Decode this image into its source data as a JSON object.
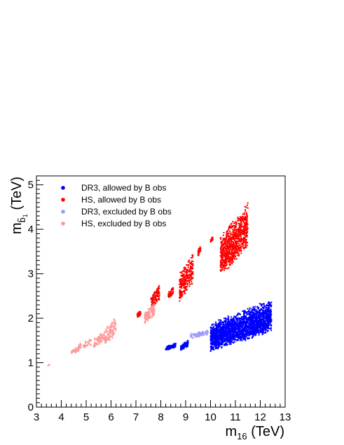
{
  "chart_data": {
    "type": "scatter",
    "xlabel": "m",
    "xlabel_sub": "16",
    "xlabel_unit": " (TeV)",
    "ylabel": "m",
    "ylabel_sub": "b̃",
    "ylabel_subsub": "1",
    "ylabel_unit": " (TeV)",
    "xlim": [
      3,
      13
    ],
    "ylim": [
      0,
      5.2
    ],
    "x_ticks": [
      3,
      4,
      5,
      6,
      7,
      8,
      9,
      10,
      11,
      12,
      13
    ],
    "y_ticks": [
      0,
      1,
      2,
      3,
      4,
      5
    ],
    "grid": false,
    "legend_position": "top-left",
    "series": [
      {
        "name": "DR3, allowed by B obs",
        "color": "#0000ff",
        "clusters": [
          {
            "x": [
              8.2,
              8.6
            ],
            "y": [
              1.28,
              1.45
            ],
            "n": 120
          },
          {
            "x": [
              8.8,
              9.1
            ],
            "y": [
              1.28,
              1.5
            ],
            "n": 90
          },
          {
            "x": [
              10.0,
              12.45
            ],
            "y": [
              1.3,
              2.4
            ],
            "n": 2200
          }
        ]
      },
      {
        "name": "HS, allowed by B obs",
        "color": "#ff0000",
        "clusters": [
          {
            "x": [
              7.05,
              7.2
            ],
            "y": [
              2.0,
              2.2
            ],
            "n": 60
          },
          {
            "x": [
              7.6,
              7.95
            ],
            "y": [
              2.2,
              2.75
            ],
            "n": 120
          },
          {
            "x": [
              8.3,
              8.5
            ],
            "y": [
              2.45,
              2.7
            ],
            "n": 60
          },
          {
            "x": [
              8.75,
              9.3
            ],
            "y": [
              2.4,
              3.5
            ],
            "n": 280
          },
          {
            "x": [
              9.5,
              9.6
            ],
            "y": [
              3.4,
              3.65
            ],
            "n": 40
          },
          {
            "x": [
              10.0,
              10.1
            ],
            "y": [
              3.7,
              3.85
            ],
            "n": 25
          },
          {
            "x": [
              10.4,
              11.5
            ],
            "y": [
              3.0,
              4.6
            ],
            "n": 900
          }
        ]
      },
      {
        "name": "DR3, excluded by B obs",
        "color": "#9999ff",
        "clusters": [
          {
            "x": [
              9.2,
              9.9
            ],
            "y": [
              1.55,
              1.75
            ],
            "n": 80
          }
        ]
      },
      {
        "name": "HS, excluded by B obs",
        "color": "#ff9999",
        "clusters": [
          {
            "x": [
              3.45,
              3.55
            ],
            "y": [
              0.92,
              0.98
            ],
            "n": 4
          },
          {
            "x": [
              4.4,
              4.7
            ],
            "y": [
              1.18,
              1.38
            ],
            "n": 40
          },
          {
            "x": [
              4.7,
              5.2
            ],
            "y": [
              1.3,
              1.55
            ],
            "n": 50
          },
          {
            "x": [
              5.3,
              5.75
            ],
            "y": [
              1.35,
              1.7
            ],
            "n": 90
          },
          {
            "x": [
              5.75,
              6.2
            ],
            "y": [
              1.4,
              2.05
            ],
            "n": 120
          },
          {
            "x": [
              7.35,
              7.75
            ],
            "y": [
              1.9,
              2.35
            ],
            "n": 140
          }
        ]
      }
    ]
  }
}
